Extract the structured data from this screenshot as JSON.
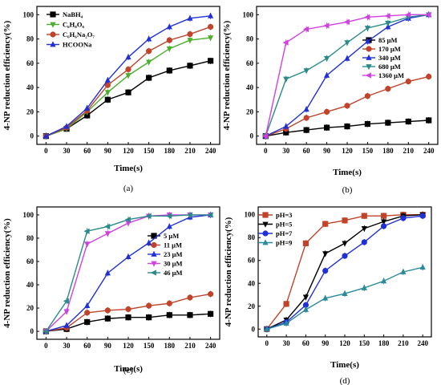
{
  "chart_data": [
    {
      "panel_label": "(a)",
      "type": "line",
      "xlabel": "Time(s)",
      "ylabel": "4-NP reduction efficiency(%)",
      "x_ticks": [
        "0",
        "30",
        "60",
        "90",
        "120",
        "150",
        "180",
        "210",
        "240"
      ],
      "y_ticks": [
        "0",
        "20",
        "40",
        "60",
        "80",
        "100"
      ],
      "xlim": [
        0,
        240
      ],
      "ylim": [
        0,
        100
      ],
      "legend_position": "top-left",
      "series": [
        {
          "name": "NaBH₄",
          "color": "#000000",
          "marker": "square",
          "x": [
            0,
            30,
            60,
            90,
            120,
            150,
            180,
            210,
            240
          ],
          "y": [
            0,
            6,
            17,
            30,
            36,
            48,
            54,
            58,
            62
          ]
        },
        {
          "name": "C₆H₈O₆",
          "color": "#4caf2c",
          "marker": "triangle-down",
          "x": [
            0,
            30,
            60,
            90,
            120,
            150,
            180,
            210,
            240
          ],
          "y": [
            0,
            6,
            20,
            36,
            50,
            61,
            72,
            79,
            81
          ]
        },
        {
          "name": "C₆H₆Na₂O₇",
          "color": "#c0432a",
          "marker": "circle",
          "x": [
            0,
            30,
            60,
            90,
            120,
            150,
            180,
            210,
            240
          ],
          "y": [
            0,
            7,
            21,
            42,
            55,
            70,
            79,
            84,
            90
          ]
        },
        {
          "name": "HCOONa",
          "color": "#2030d8",
          "marker": "triangle",
          "x": [
            0,
            30,
            60,
            90,
            120,
            150,
            180,
            210,
            240
          ],
          "y": [
            0,
            8,
            23,
            46,
            65,
            80,
            90,
            97,
            99
          ]
        }
      ]
    },
    {
      "panel_label": "(b)",
      "type": "line",
      "xlabel": "Time(s)",
      "ylabel": "4-NP reduction efficiency(%)",
      "x_ticks": [
        "0",
        "30",
        "60",
        "90",
        "120",
        "150",
        "180",
        "210",
        "240"
      ],
      "y_ticks": [
        "0",
        "20",
        "40",
        "60",
        "80",
        "100"
      ],
      "xlim": [
        0,
        240
      ],
      "ylim": [
        0,
        100
      ],
      "legend_position": "right",
      "series": [
        {
          "name": "85 μM",
          "color": "#000000",
          "marker": "square",
          "x": [
            0,
            30,
            60,
            90,
            120,
            150,
            180,
            210,
            240
          ],
          "y": [
            0,
            3,
            5,
            7,
            8,
            10,
            11,
            12,
            13
          ]
        },
        {
          "name": "170 μM",
          "color": "#c0432a",
          "marker": "circle",
          "x": [
            0,
            30,
            60,
            90,
            120,
            150,
            180,
            210,
            240
          ],
          "y": [
            0,
            6,
            15,
            20,
            25,
            33,
            39,
            45,
            49
          ]
        },
        {
          "name": "340 μM",
          "color": "#2030d8",
          "marker": "triangle",
          "x": [
            0,
            30,
            60,
            90,
            120,
            150,
            180,
            210,
            240
          ],
          "y": [
            0,
            8,
            22,
            50,
            64,
            78,
            90,
            97,
            100
          ]
        },
        {
          "name": "680 μM",
          "color": "#2a8a8a",
          "marker": "triangle-down",
          "x": [
            0,
            30,
            60,
            90,
            120,
            150,
            180,
            210,
            240
          ],
          "y": [
            0,
            47,
            54,
            64,
            77,
            89,
            93,
            98,
            100
          ]
        },
        {
          "name": "1360 μM",
          "color": "#d040e0",
          "marker": "triangle-left",
          "x": [
            0,
            30,
            60,
            90,
            120,
            150,
            180,
            210,
            240
          ],
          "y": [
            0,
            77,
            88,
            91,
            94,
            98,
            99,
            100,
            100
          ]
        }
      ]
    },
    {
      "panel_label": "(c)",
      "type": "line",
      "xlabel": "Time(s)",
      "ylabel": "4-NP reduction efficiency(%)",
      "x_ticks": [
        "0",
        "30",
        "60",
        "90",
        "120",
        "150",
        "180",
        "210",
        "240"
      ],
      "y_ticks": [
        "0",
        "20",
        "40",
        "60",
        "80",
        "100"
      ],
      "xlim": [
        0,
        240
      ],
      "ylim": [
        0,
        100
      ],
      "legend_position": "right",
      "series": [
        {
          "name": "5 μM",
          "color": "#000000",
          "marker": "square",
          "x": [
            0,
            30,
            60,
            90,
            120,
            150,
            180,
            210,
            240
          ],
          "y": [
            0,
            2,
            8,
            11,
            12,
            12,
            14,
            14,
            15
          ]
        },
        {
          "name": "11 μM",
          "color": "#c0432a",
          "marker": "circle",
          "x": [
            0,
            30,
            60,
            90,
            120,
            150,
            180,
            210,
            240
          ],
          "y": [
            0,
            3,
            16,
            18,
            19,
            22,
            24,
            29,
            32
          ]
        },
        {
          "name": "23 μM",
          "color": "#2030d8",
          "marker": "triangle",
          "x": [
            0,
            30,
            60,
            90,
            120,
            150,
            180,
            210,
            240
          ],
          "y": [
            0,
            5,
            22,
            50,
            64,
            76,
            90,
            98,
            100
          ]
        },
        {
          "name": "30 μM",
          "color": "#d040e0",
          "marker": "triangle-down",
          "x": [
            0,
            30,
            60,
            90,
            120,
            150,
            180,
            210,
            240
          ],
          "y": [
            0,
            17,
            75,
            84,
            93,
            99,
            100,
            100,
            100
          ]
        },
        {
          "name": "46 μM",
          "color": "#2a8a8a",
          "marker": "triangle-left",
          "x": [
            0,
            30,
            60,
            90,
            120,
            150,
            180,
            210,
            240
          ],
          "y": [
            0,
            26,
            86,
            90,
            96,
            99,
            99,
            100,
            100
          ]
        }
      ]
    },
    {
      "panel_label": "(d)",
      "type": "line",
      "xlabel": "Time(s)",
      "ylabel": "4-NP reduction efficiency(%)",
      "x_ticks": [
        "0",
        "30",
        "60",
        "90",
        "120",
        "150",
        "180",
        "210",
        "240"
      ],
      "y_ticks": [
        "0",
        "20",
        "40",
        "60",
        "80",
        "100"
      ],
      "xlim": [
        0,
        240
      ],
      "ylim": [
        0,
        100
      ],
      "legend_position": "top-left",
      "series": [
        {
          "name": "pH=3",
          "color": "#c0432a",
          "marker": "square",
          "x": [
            0,
            30,
            60,
            90,
            120,
            150,
            180,
            210,
            240
          ],
          "y": [
            0,
            22,
            75,
            92,
            95,
            99,
            99,
            100,
            100
          ]
        },
        {
          "name": "pH=5",
          "color": "#000000",
          "marker": "triangle-down",
          "x": [
            0,
            30,
            60,
            90,
            120,
            150,
            180,
            210,
            240
          ],
          "y": [
            0,
            8,
            28,
            66,
            75,
            88,
            94,
            99,
            100
          ]
        },
        {
          "name": "pH=7",
          "color": "#2030d8",
          "marker": "circle",
          "x": [
            0,
            30,
            60,
            90,
            120,
            150,
            180,
            210,
            240
          ],
          "y": [
            0,
            6,
            21,
            51,
            64,
            76,
            90,
            97,
            99
          ]
        },
        {
          "name": "pH=9",
          "color": "#2a8a9a",
          "marker": "triangle",
          "x": [
            0,
            30,
            60,
            90,
            120,
            150,
            180,
            210,
            240
          ],
          "y": [
            0,
            5,
            17,
            27,
            31,
            36,
            42,
            50,
            54
          ]
        }
      ]
    }
  ]
}
